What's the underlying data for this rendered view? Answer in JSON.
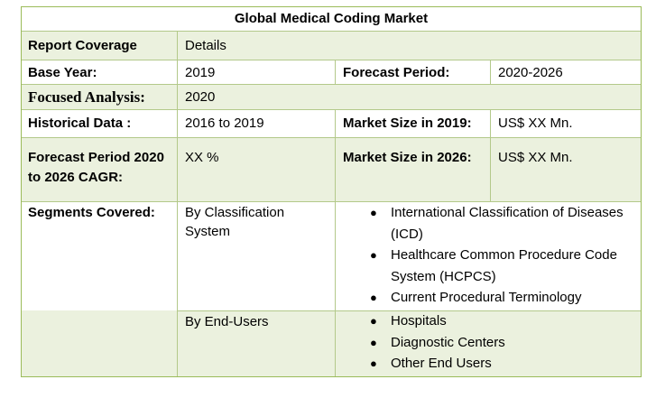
{
  "title": "Global Medical Coding Market",
  "rows": {
    "coverage": {
      "label": "Report Coverage",
      "value": "Details"
    },
    "base_year": {
      "label": "Base Year:",
      "value": "2019",
      "label2": "Forecast Period:",
      "value2": "2020-2026"
    },
    "focused": {
      "label": "Focused Analysis:",
      "value": "2020"
    },
    "historical": {
      "label": "Historical Data :",
      "value": "2016 to 2019",
      "label2": "Market Size in 2019:",
      "value2": "US$ XX Mn."
    },
    "cagr": {
      "label": "Forecast Period 2020 to 2026 CAGR:",
      "value": "XX %",
      "label2": "Market Size in 2026:",
      "value2": "US$ XX Mn."
    },
    "segments": {
      "label": "Segments Covered:",
      "groups": [
        {
          "name": "By Classification System",
          "items": [
            "International Classification of Diseases (ICD)",
            "Healthcare Common Procedure Code System (HCPCS)",
            "Current Procedural Terminology"
          ]
        },
        {
          "name": "By End-Users",
          "items": [
            "Hospitals",
            "Diagnostic Centers",
            "Other End Users"
          ]
        }
      ]
    }
  },
  "colors": {
    "row_fill": "#ebf1de",
    "border": "#9bbb59"
  },
  "bullet_glyph": "●"
}
